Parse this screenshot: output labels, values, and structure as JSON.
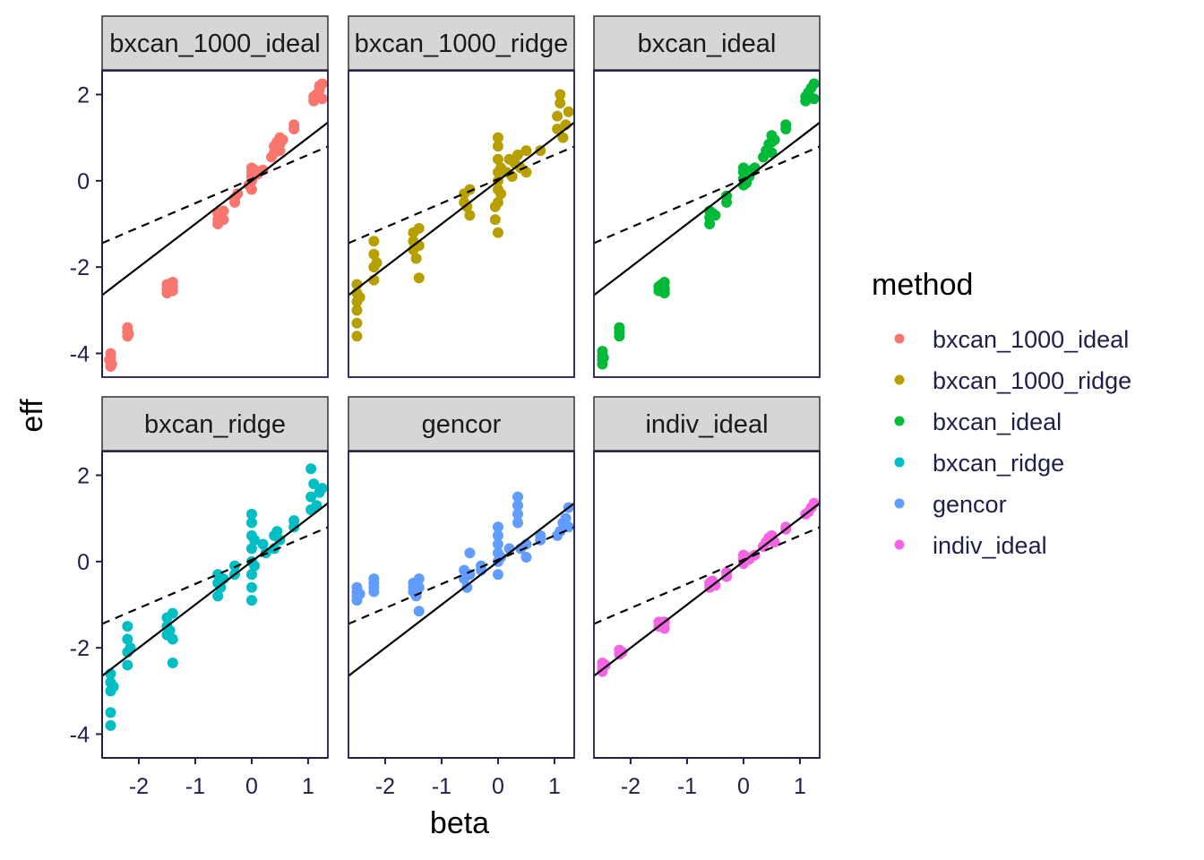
{
  "chart_data": {
    "type": "scatter",
    "xlabel": "beta",
    "ylabel": "eff",
    "xlim": [
      -2.65,
      1.35
    ],
    "ylim": [
      -4.55,
      2.55
    ],
    "x_ticks": [
      -2,
      -1,
      0,
      1
    ],
    "x_tick_labels": [
      "-2",
      "-1",
      "0",
      "1"
    ],
    "y_ticks": [
      2,
      0,
      -2,
      -4
    ],
    "y_tick_labels": [
      "2",
      "0",
      "-2",
      "-4"
    ],
    "grid": false,
    "facet_layout": "2 rows x 3 columns",
    "reference_lines": {
      "solid": {
        "style": "solid",
        "slope": 1.0,
        "intercept": 0.0
      },
      "dashed": {
        "style": "dashed",
        "slope": 0.56,
        "intercept": 0.04
      }
    },
    "legend": {
      "title": "method",
      "placement": "right"
    },
    "series": [
      {
        "name": "bxcan_1000_ideal",
        "color": "#F8766D",
        "points": [
          [
            -2.5,
            -4.0
          ],
          [
            -2.5,
            -4.1
          ],
          [
            -2.5,
            -4.2
          ],
          [
            -2.5,
            -4.3
          ],
          [
            -2.52,
            -4.15
          ],
          [
            -2.48,
            -4.25
          ],
          [
            -2.2,
            -3.4
          ],
          [
            -2.2,
            -3.5
          ],
          [
            -2.2,
            -3.6
          ],
          [
            -2.18,
            -3.55
          ],
          [
            -1.5,
            -2.4
          ],
          [
            -1.5,
            -2.5
          ],
          [
            -1.5,
            -2.6
          ],
          [
            -1.45,
            -2.5
          ],
          [
            -1.4,
            -2.35
          ],
          [
            -1.4,
            -2.45
          ],
          [
            -1.4,
            -2.55
          ],
          [
            -0.6,
            -0.75
          ],
          [
            -0.6,
            -0.9
          ],
          [
            -0.6,
            -1.0
          ],
          [
            -0.55,
            -0.8
          ],
          [
            -0.5,
            -0.7
          ],
          [
            -0.5,
            -0.9
          ],
          [
            -0.3,
            -0.4
          ],
          [
            -0.3,
            -0.5
          ],
          [
            -0.25,
            -0.3
          ],
          [
            -0.05,
            -0.1
          ],
          [
            0,
            0
          ],
          [
            0,
            0.1
          ],
          [
            0,
            0.2
          ],
          [
            0,
            -0.2
          ],
          [
            0,
            0.3
          ],
          [
            0.05,
            0.25
          ],
          [
            0.1,
            0.15
          ],
          [
            0.2,
            0.25
          ],
          [
            0.35,
            0.55
          ],
          [
            0.4,
            0.65
          ],
          [
            0.4,
            0.8
          ],
          [
            0.45,
            0.9
          ],
          [
            0.5,
            0.7
          ],
          [
            0.5,
            0.85
          ],
          [
            0.5,
            1.0
          ],
          [
            0.55,
            0.95
          ],
          [
            0.75,
            1.2
          ],
          [
            0.75,
            1.3
          ],
          [
            1.1,
            1.85
          ],
          [
            1.1,
            1.95
          ],
          [
            1.15,
            2.0
          ],
          [
            1.2,
            2.1
          ],
          [
            1.2,
            2.2
          ],
          [
            1.25,
            1.9
          ],
          [
            1.25,
            2.25
          ]
        ]
      },
      {
        "name": "bxcan_1000_ridge",
        "color": "#B79F00",
        "points": [
          [
            -2.5,
            -2.4
          ],
          [
            -2.5,
            -2.6
          ],
          [
            -2.5,
            -2.8
          ],
          [
            -2.5,
            -3.0
          ],
          [
            -2.5,
            -3.3
          ],
          [
            -2.5,
            -3.6
          ],
          [
            -2.45,
            -2.7
          ],
          [
            -2.2,
            -1.4
          ],
          [
            -2.2,
            -1.7
          ],
          [
            -2.2,
            -2.0
          ],
          [
            -2.2,
            -2.3
          ],
          [
            -2.15,
            -1.9
          ],
          [
            -1.5,
            -1.2
          ],
          [
            -1.5,
            -1.4
          ],
          [
            -1.5,
            -1.6
          ],
          [
            -1.45,
            -1.8
          ],
          [
            -1.4,
            -1.1
          ],
          [
            -1.4,
            -1.5
          ],
          [
            -1.4,
            -2.25
          ],
          [
            -0.6,
            -0.3
          ],
          [
            -0.6,
            -0.5
          ],
          [
            -0.55,
            -0.6
          ],
          [
            -0.5,
            -0.2
          ],
          [
            -0.5,
            -0.8
          ],
          [
            -0.05,
            -0.9
          ],
          [
            -0.05,
            -0.6
          ],
          [
            0,
            -1.2
          ],
          [
            0,
            -0.5
          ],
          [
            0,
            -0.2
          ],
          [
            0,
            0
          ],
          [
            0,
            0.2
          ],
          [
            0,
            0.5
          ],
          [
            0,
            0.8
          ],
          [
            0,
            1.0
          ],
          [
            0.05,
            0.3
          ],
          [
            0.05,
            -0.3
          ],
          [
            0.15,
            0.2
          ],
          [
            0.2,
            0.5
          ],
          [
            0.25,
            0.1
          ],
          [
            0.3,
            0.4
          ],
          [
            0.35,
            0.6
          ],
          [
            0.4,
            0.3
          ],
          [
            0.5,
            0.7
          ],
          [
            0.5,
            0.2
          ],
          [
            0.75,
            0.7
          ],
          [
            1.05,
            1.2
          ],
          [
            1.05,
            1.5
          ],
          [
            1.1,
            1.8
          ],
          [
            1.1,
            2.0
          ],
          [
            1.15,
            1.0
          ],
          [
            1.2,
            1.3
          ],
          [
            1.25,
            1.6
          ]
        ]
      },
      {
        "name": "bxcan_ideal",
        "color": "#00BA38",
        "points": [
          [
            -2.5,
            -3.95
          ],
          [
            -2.5,
            -4.05
          ],
          [
            -2.5,
            -4.15
          ],
          [
            -2.5,
            -4.25
          ],
          [
            -2.48,
            -4.1
          ],
          [
            -2.2,
            -3.4
          ],
          [
            -2.2,
            -3.5
          ],
          [
            -2.2,
            -3.6
          ],
          [
            -1.5,
            -2.45
          ],
          [
            -1.5,
            -2.55
          ],
          [
            -1.45,
            -2.4
          ],
          [
            -1.4,
            -2.35
          ],
          [
            -1.4,
            -2.5
          ],
          [
            -1.4,
            -2.6
          ],
          [
            -0.6,
            -0.7
          ],
          [
            -0.6,
            -0.85
          ],
          [
            -0.6,
            -1.0
          ],
          [
            -0.55,
            -0.75
          ],
          [
            -0.5,
            -0.8
          ],
          [
            -0.3,
            -0.35
          ],
          [
            -0.3,
            -0.5
          ],
          [
            0,
            -0.1
          ],
          [
            0,
            0.05
          ],
          [
            0,
            0.2
          ],
          [
            0,
            0.3
          ],
          [
            0.05,
            -0.05
          ],
          [
            0.1,
            0.1
          ],
          [
            0.15,
            0.25
          ],
          [
            0.2,
            0.3
          ],
          [
            0.35,
            0.55
          ],
          [
            0.4,
            0.7
          ],
          [
            0.45,
            0.85
          ],
          [
            0.5,
            0.65
          ],
          [
            0.5,
            0.9
          ],
          [
            0.5,
            1.05
          ],
          [
            0.55,
            0.95
          ],
          [
            0.75,
            1.2
          ],
          [
            0.75,
            1.3
          ],
          [
            1.1,
            1.85
          ],
          [
            1.1,
            1.95
          ],
          [
            1.15,
            2.05
          ],
          [
            1.2,
            2.15
          ],
          [
            1.25,
            2.25
          ],
          [
            1.25,
            1.9
          ]
        ]
      },
      {
        "name": "bxcan_ridge",
        "color": "#00BFC4",
        "points": [
          [
            -2.5,
            -2.6
          ],
          [
            -2.5,
            -2.8
          ],
          [
            -2.5,
            -3.0
          ],
          [
            -2.5,
            -3.5
          ],
          [
            -2.5,
            -3.8
          ],
          [
            -2.45,
            -2.9
          ],
          [
            -2.2,
            -1.5
          ],
          [
            -2.2,
            -1.8
          ],
          [
            -2.2,
            -2.1
          ],
          [
            -2.2,
            -2.4
          ],
          [
            -2.15,
            -2.0
          ],
          [
            -1.5,
            -1.3
          ],
          [
            -1.5,
            -1.5
          ],
          [
            -1.5,
            -1.7
          ],
          [
            -1.45,
            -1.6
          ],
          [
            -1.4,
            -1.2
          ],
          [
            -1.4,
            -1.8
          ],
          [
            -1.4,
            -2.35
          ],
          [
            -0.6,
            -0.3
          ],
          [
            -0.6,
            -0.5
          ],
          [
            -0.6,
            -0.8
          ],
          [
            -0.55,
            -0.6
          ],
          [
            -0.5,
            -0.4
          ],
          [
            -0.3,
            -0.1
          ],
          [
            -0.3,
            -0.3
          ],
          [
            0,
            -0.9
          ],
          [
            0,
            -0.6
          ],
          [
            0,
            -0.3
          ],
          [
            0,
            0
          ],
          [
            0,
            0.3
          ],
          [
            0,
            0.6
          ],
          [
            0,
            0.9
          ],
          [
            0,
            1.1
          ],
          [
            0.05,
            0.5
          ],
          [
            0.05,
            -0.1
          ],
          [
            0.2,
            0.4
          ],
          [
            0.25,
            0.2
          ],
          [
            0.4,
            0.3
          ],
          [
            0.4,
            0.6
          ],
          [
            0.45,
            0.7
          ],
          [
            0.5,
            0.5
          ],
          [
            0.75,
            0.8
          ],
          [
            0.75,
            0.95
          ],
          [
            1.05,
            1.2
          ],
          [
            1.05,
            1.5
          ],
          [
            1.05,
            2.15
          ],
          [
            1.1,
            1.8
          ],
          [
            1.15,
            1.3
          ],
          [
            1.2,
            1.6
          ],
          [
            1.25,
            1.7
          ]
        ]
      },
      {
        "name": "gencor",
        "color": "#619CFF",
        "points": [
          [
            -2.5,
            -0.6
          ],
          [
            -2.5,
            -0.7
          ],
          [
            -2.5,
            -0.8
          ],
          [
            -2.5,
            -0.9
          ],
          [
            -2.45,
            -0.75
          ],
          [
            -2.2,
            -0.4
          ],
          [
            -2.2,
            -0.5
          ],
          [
            -2.2,
            -0.6
          ],
          [
            -2.2,
            -0.7
          ],
          [
            -1.5,
            -0.5
          ],
          [
            -1.5,
            -0.6
          ],
          [
            -1.5,
            -0.7
          ],
          [
            -1.45,
            -0.8
          ],
          [
            -1.4,
            -0.4
          ],
          [
            -1.4,
            -0.6
          ],
          [
            -1.4,
            -1.15
          ],
          [
            -0.6,
            -0.2
          ],
          [
            -0.6,
            -0.4
          ],
          [
            -0.55,
            -0.6
          ],
          [
            -0.5,
            0.2
          ],
          [
            -0.5,
            -0.3
          ],
          [
            -0.3,
            -0.1
          ],
          [
            -0.3,
            -0.2
          ],
          [
            0,
            -0.3
          ],
          [
            0,
            0
          ],
          [
            0,
            0.2
          ],
          [
            0,
            0.4
          ],
          [
            0,
            0.6
          ],
          [
            0,
            0.8
          ],
          [
            0.05,
            0.1
          ],
          [
            0.2,
            0.3
          ],
          [
            0.35,
            0.9
          ],
          [
            0.35,
            1.1
          ],
          [
            0.35,
            1.3
          ],
          [
            0.35,
            1.5
          ],
          [
            0.4,
            0.3
          ],
          [
            0.5,
            0.1
          ],
          [
            0.5,
            0.4
          ],
          [
            0.75,
            0.5
          ],
          [
            0.75,
            0.6
          ],
          [
            1.05,
            0.6
          ],
          [
            1.1,
            0.7
          ],
          [
            1.15,
            0.9
          ],
          [
            1.2,
            1.0
          ],
          [
            1.25,
            1.25
          ],
          [
            1.25,
            0.8
          ]
        ]
      },
      {
        "name": "indiv_ideal",
        "color": "#F564E3",
        "points": [
          [
            -2.5,
            -2.35
          ],
          [
            -2.5,
            -2.45
          ],
          [
            -2.5,
            -2.55
          ],
          [
            -2.45,
            -2.4
          ],
          [
            -2.2,
            -2.05
          ],
          [
            -2.2,
            -2.15
          ],
          [
            -2.15,
            -2.1
          ],
          [
            -1.5,
            -1.4
          ],
          [
            -1.5,
            -1.5
          ],
          [
            -1.45,
            -1.45
          ],
          [
            -1.4,
            -1.4
          ],
          [
            -1.4,
            -1.55
          ],
          [
            -0.6,
            -0.5
          ],
          [
            -0.6,
            -0.6
          ],
          [
            -0.55,
            -0.45
          ],
          [
            -0.5,
            -0.55
          ],
          [
            -0.3,
            -0.25
          ],
          [
            -0.3,
            -0.35
          ],
          [
            0,
            -0.05
          ],
          [
            0,
            0.05
          ],
          [
            0,
            0.15
          ],
          [
            0.05,
            0.1
          ],
          [
            0.1,
            0.05
          ],
          [
            0.2,
            0.15
          ],
          [
            0.35,
            0.35
          ],
          [
            0.4,
            0.45
          ],
          [
            0.45,
            0.55
          ],
          [
            0.5,
            0.5
          ],
          [
            0.5,
            0.6
          ],
          [
            0.55,
            0.45
          ],
          [
            0.75,
            0.75
          ],
          [
            0.75,
            0.8
          ],
          [
            1.1,
            1.1
          ],
          [
            1.15,
            1.15
          ],
          [
            1.2,
            1.25
          ],
          [
            1.25,
            1.35
          ]
        ]
      }
    ]
  }
}
